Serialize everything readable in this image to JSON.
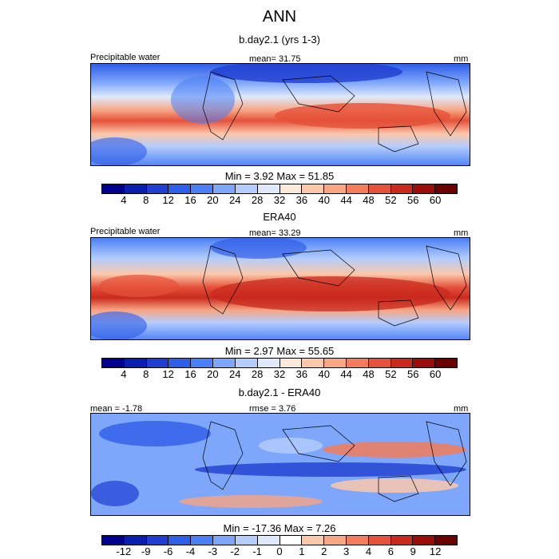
{
  "title": "ANN",
  "panels": [
    {
      "subtitle": "b.day2.1 (yrs 1-3)",
      "left_label": "Precipitable water",
      "center_label": "mean=  31.75",
      "right_label": "mm",
      "minmax": "Min =   3.92 Max =  51.85",
      "colorbar": "abs",
      "tick_labels": [
        "4",
        "8",
        "12",
        "16",
        "20",
        "24",
        "28",
        "32",
        "36",
        "40",
        "44",
        "48",
        "52",
        "56",
        "60"
      ]
    },
    {
      "subtitle": "ERA40",
      "left_label": "Precipitable water",
      "center_label": "mean=  33.29",
      "right_label": "mm",
      "minmax": "Min =   2.97 Max =  55.65",
      "colorbar": "abs",
      "tick_labels": [
        "4",
        "8",
        "12",
        "16",
        "20",
        "24",
        "28",
        "32",
        "36",
        "40",
        "44",
        "48",
        "52",
        "56",
        "60"
      ]
    },
    {
      "subtitle": "b.day2.1 - ERA40",
      "left_label": "mean =  -1.78",
      "center_label": "rmse =   3.76",
      "right_label": "mm",
      "minmax": "Min = -17.36 Max =   7.26",
      "colorbar": "diff",
      "tick_labels": [
        "-12",
        "-9",
        "-6",
        "-4",
        "-3",
        "-2",
        "-1",
        "0",
        "1",
        "2",
        "3",
        "4",
        "6",
        "9",
        "12"
      ]
    }
  ],
  "colors": {
    "abs": [
      "#00008f",
      "#0a1fb0",
      "#1f3dd1",
      "#2f5ee8",
      "#4a7ff5",
      "#7ea6fb",
      "#b4cdfc",
      "#deeafc",
      "#fde9da",
      "#fbc8aa",
      "#f8a583",
      "#f27c5b",
      "#e5513a",
      "#c92a1d",
      "#9a0d0b",
      "#6b0000"
    ],
    "diff": [
      "#00008f",
      "#0a1fb0",
      "#1f3dd1",
      "#2f5ee8",
      "#4a7ff5",
      "#7ea6fb",
      "#b4cdfc",
      "#deeafc",
      "#ffffff",
      "#fbc8aa",
      "#f8a583",
      "#f27c5b",
      "#e5513a",
      "#c92a1d",
      "#9a0d0b",
      "#6b0000"
    ]
  }
}
